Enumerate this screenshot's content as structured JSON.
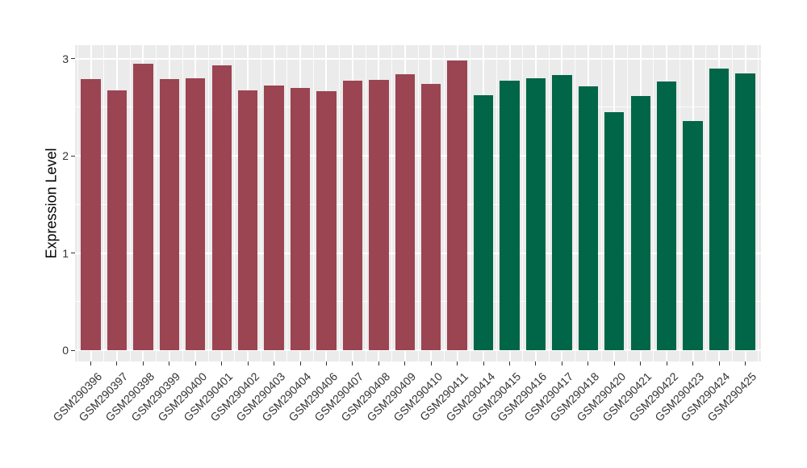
{
  "chart_data": {
    "type": "bar",
    "title": "",
    "xlabel": "",
    "ylabel": "Expression Level",
    "categories": [
      "GSM290396",
      "GSM290397",
      "GSM290398",
      "GSM290399",
      "GSM290400",
      "GSM290401",
      "GSM290402",
      "GSM290403",
      "GSM290404",
      "GSM290406",
      "GSM290407",
      "GSM290408",
      "GSM290409",
      "GSM290410",
      "GSM290411",
      "GSM290414",
      "GSM290415",
      "GSM290416",
      "GSM290417",
      "GSM290418",
      "GSM290420",
      "GSM290421",
      "GSM290422",
      "GSM290423",
      "GSM290424",
      "GSM290425"
    ],
    "values": [
      2.79,
      2.67,
      2.95,
      2.79,
      2.8,
      2.93,
      2.67,
      2.72,
      2.7,
      2.66,
      2.77,
      2.78,
      2.84,
      2.74,
      2.98,
      2.62,
      2.77,
      2.8,
      2.83,
      2.71,
      2.45,
      2.61,
      2.76,
      2.36,
      2.9,
      2.85
    ],
    "bar_groups": [
      "maroon",
      "maroon",
      "maroon",
      "maroon",
      "maroon",
      "maroon",
      "maroon",
      "maroon",
      "maroon",
      "maroon",
      "maroon",
      "maroon",
      "maroon",
      "maroon",
      "maroon",
      "green",
      "green",
      "green",
      "green",
      "green",
      "green",
      "green",
      "green",
      "green",
      "green",
      "green"
    ],
    "group_colors": {
      "maroon": "#9B4452",
      "green": "#006647"
    },
    "yticks": [
      0,
      1,
      2,
      3
    ],
    "minor_yticks": [
      0.5,
      1.5,
      2.5
    ],
    "ylim": [
      0,
      3
    ],
    "grid": "on",
    "legend": "none",
    "colors": {
      "figure_bg": "#FFFFFF",
      "panel_bg": "#EBEBEB",
      "gridline": "#FFFFFF",
      "axis_text": "#333333",
      "axis_title": "#000000",
      "tick_mark": "#333333"
    }
  }
}
